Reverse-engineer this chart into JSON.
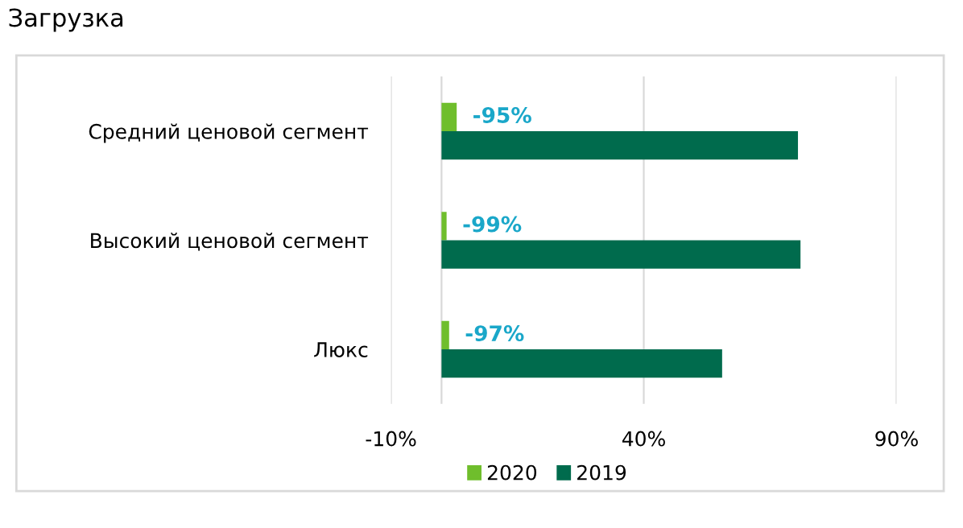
{
  "chart_data": {
    "type": "bar",
    "orientation": "horizontal",
    "title": "Загрузка",
    "categories": [
      "Средний ценовой сегмент",
      "Высокий ценовой сегмент",
      "Люкс"
    ],
    "series": [
      {
        "name": "2020",
        "color": "#6fbe2c",
        "values": [
          3,
          1,
          1.5
        ]
      },
      {
        "name": "2019",
        "color": "#006b4d",
        "values": [
          70.5,
          71,
          55.5
        ]
      }
    ],
    "xlim": [
      -10,
      90
    ],
    "xticks": [
      {
        "value": -10,
        "label": "-10%"
      },
      {
        "value": 40,
        "label": "40%"
      },
      {
        "value": 90,
        "label": "90%"
      }
    ],
    "annotations": [
      {
        "text": "-95%",
        "x": 3,
        "y": "Средний ценовой сегмент"
      },
      {
        "text": "-99%",
        "x": 1,
        "y": "Высокий ценовой сегмент"
      },
      {
        "text": "-97%",
        "x": 1.5,
        "y": "Люкс"
      }
    ],
    "grid": "x",
    "legend": "bottom"
  }
}
